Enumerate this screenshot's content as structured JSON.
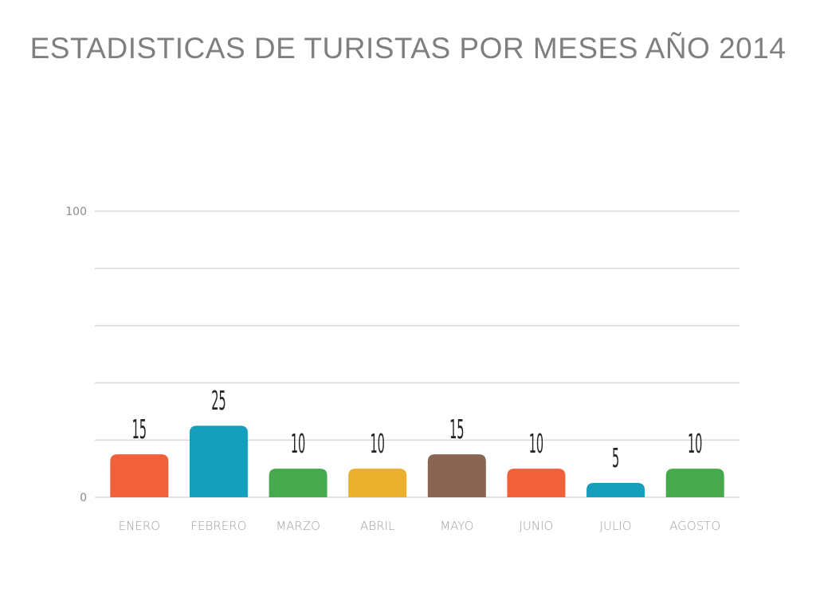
{
  "chart_data": {
    "type": "bar",
    "title": "ESTADISTICAS DE TURISTAS POR MESES AÑO 2014",
    "categories": [
      "ENERO",
      "FEBRERO",
      "MARZO",
      "ABRIL",
      "MAYO",
      "JUNIO",
      "JULIO",
      "AGOSTO"
    ],
    "values": [
      15,
      25,
      10,
      10,
      15,
      10,
      5,
      10
    ],
    "data_labels": [
      "15",
      "25",
      "10",
      "10",
      "15",
      "10",
      "5",
      "10"
    ],
    "colors": [
      "#f0603a",
      "#159fbd",
      "#46aa4c",
      "#ebb02b",
      "#8a6553",
      "#f0603a",
      "#159fbd",
      "#46aa4c"
    ],
    "ylim": [
      0,
      100
    ],
    "yticks": [
      0,
      20,
      40,
      60,
      80,
      100
    ],
    "ytick_labels": [
      "0",
      "",
      "",
      "",
      "",
      "100"
    ],
    "grid": true,
    "gridline_color": "#d9d9d9",
    "legend": "none"
  }
}
